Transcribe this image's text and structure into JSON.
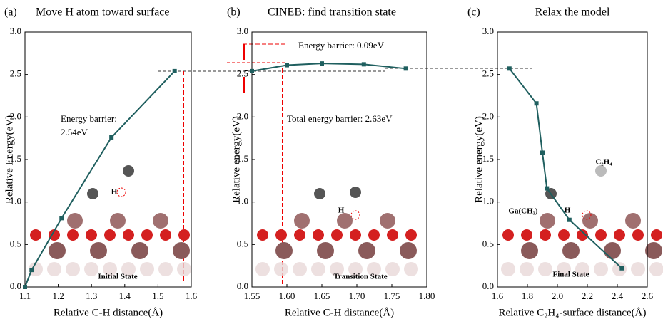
{
  "chart_data": [
    {
      "type": "line",
      "label": "(a)",
      "title": "Move H atom toward surface",
      "x_label": "Relative C-H distance(Å)",
      "y_label": "Relative Energy(eV)",
      "x": [
        1.1,
        1.12,
        1.21,
        1.36,
        1.55
      ],
      "series": [
        {
          "color": "#1f5f5f",
          "values": [
            0.0,
            0.2,
            0.81,
            1.76,
            2.54
          ]
        }
      ],
      "xlim": [
        1.1,
        1.6
      ],
      "xticks": [
        1.1,
        1.2,
        1.3,
        1.4,
        1.5,
        1.6
      ],
      "ylim": [
        0,
        3
      ],
      "yticks": [
        {
          "value": 0,
          "label": "0.0"
        },
        0.5,
        {
          "value": 1,
          "label": "1.0"
        },
        1.5,
        {
          "value": 2,
          "label": "2.0"
        },
        2.5,
        {
          "value": 3,
          "label": "3.0"
        }
      ],
      "annotations": [
        "Energy barrier:",
        "2.54eV",
        "H",
        "Initial State"
      ]
    },
    {
      "type": "line",
      "label": "(b)",
      "title": "CINEB: find transition state",
      "x_label": "Relative C-H distance(Å)",
      "y_label": "Relative energy(eV)",
      "x": [
        1.55,
        1.6,
        1.65,
        1.71,
        1.77
      ],
      "series": [
        {
          "color": "#1f5f5f",
          "values": [
            2.54,
            2.61,
            2.63,
            2.62,
            2.57
          ]
        }
      ],
      "xlim": [
        1.55,
        1.8
      ],
      "xticks": [
        1.55,
        {
          "value": 1.6,
          "label": "1.60"
        },
        1.65,
        {
          "value": 1.7,
          "label": "1.70"
        },
        1.75,
        {
          "value": 1.8,
          "label": "1.80"
        }
      ],
      "ylim": [
        0,
        3
      ],
      "yticks": [
        {
          "value": 0,
          "label": "0.0"
        },
        0.5,
        {
          "value": 1,
          "label": "1.0"
        },
        1.5,
        {
          "value": 2,
          "label": "2.0"
        },
        2.5,
        {
          "value": 3,
          "label": "3.0"
        }
      ],
      "annotations": [
        "Energy barrier: 0.09eV",
        "Total energy barrier: 2.63eV",
        "H",
        "Transition State"
      ]
    },
    {
      "type": "line",
      "label": "(c)",
      "title": "Relax the model",
      "x_label": "Relative C₂H₄-surface distance(Å)",
      "y_label": "Relative energy(eV)",
      "x": [
        1.68,
        1.86,
        1.9,
        1.93,
        2.08,
        2.43
      ],
      "series": [
        {
          "color": "#1f5f5f",
          "values": [
            2.57,
            2.16,
            1.58,
            1.16,
            0.79,
            0.22
          ]
        }
      ],
      "xlim": [
        1.6,
        2.6
      ],
      "xticks": [
        1.6,
        1.8,
        {
          "value": 2,
          "label": "2.0"
        },
        2.2,
        2.4,
        2.6
      ],
      "ylim": [
        0,
        3
      ],
      "yticks": [
        {
          "value": 0,
          "label": "0.0"
        },
        0.5,
        {
          "value": 1,
          "label": "1.0"
        },
        1.5,
        {
          "value": 2,
          "label": "2.0"
        },
        2.5,
        {
          "value": 3,
          "label": "3.0"
        }
      ],
      "annotations": [
        "C₂H₄",
        "Ga(CH₃)",
        "H",
        "Final State"
      ]
    }
  ]
}
